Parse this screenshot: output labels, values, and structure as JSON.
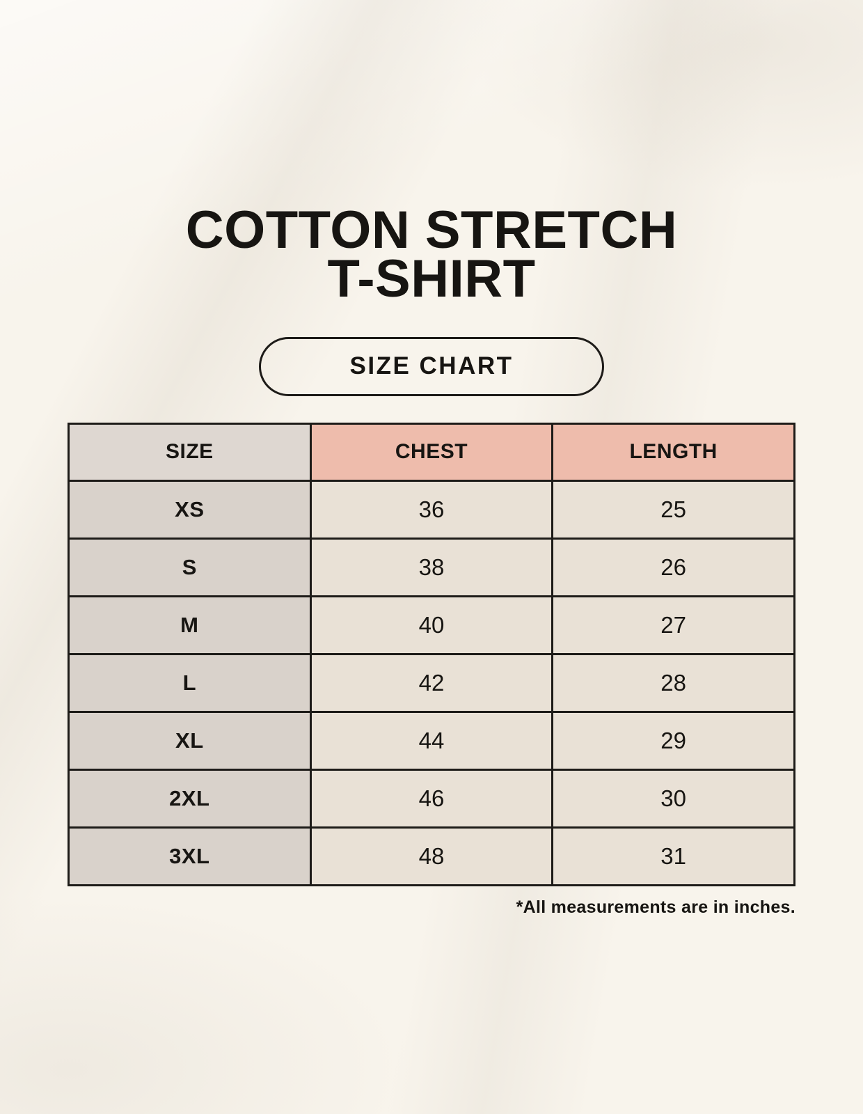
{
  "header": {
    "title_line1": "COTTON STRETCH",
    "title_line2": "T-SHIRT",
    "badge_label": "SIZE CHART"
  },
  "chart_data": {
    "type": "table",
    "title": "Cotton Stretch T-Shirt Size Chart",
    "columns": [
      "SIZE",
      "CHEST",
      "LENGTH"
    ],
    "rows": [
      [
        "XS",
        "36",
        "25"
      ],
      [
        "S",
        "38",
        "26"
      ],
      [
        "M",
        "40",
        "27"
      ],
      [
        "L",
        "42",
        "28"
      ],
      [
        "XL",
        "44",
        "29"
      ],
      [
        "2XL",
        "46",
        "30"
      ],
      [
        "3XL",
        "48",
        "31"
      ]
    ],
    "units": "inches"
  },
  "footer": {
    "note": "*All measurements are in inches."
  },
  "colors": {
    "background": "#f8f4ec",
    "header_pink": "#eebcac",
    "size_header_gray": "#ded7d1",
    "size_cell_gray": "#d9d2cb",
    "data_cell_cream": "#e9e1d6",
    "border_color": "#1d1b18",
    "text_color": "#171512"
  }
}
